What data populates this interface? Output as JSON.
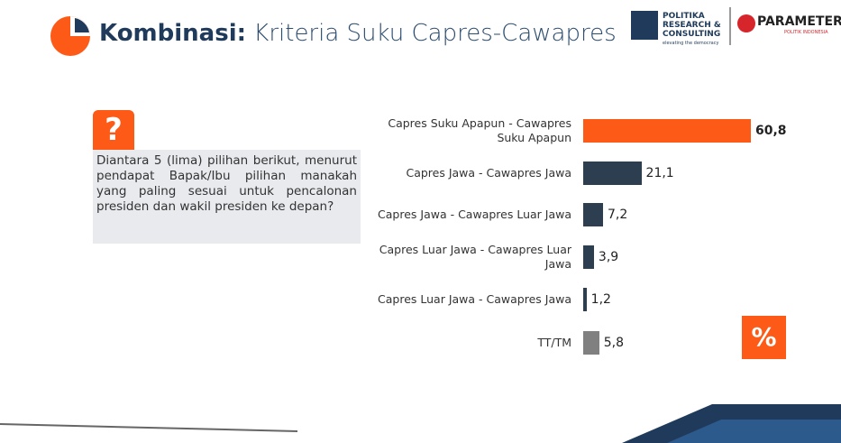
{
  "header": {
    "title_bold": "Kombinasi:",
    "title": "Kriteria Suku Capres-Cawapres",
    "logo1": [
      "POLITIKA",
      "RESEARCH &",
      "CONSULTING"
    ],
    "logo1_tagline": "elevating the democracy",
    "logo2": "PARAMETER",
    "logo2_tagline": "POLITIK INDONESIA"
  },
  "question": {
    "icon": "?",
    "text": "Diantara 5 (lima) pilihan berikut, menurut pendapat Bapak/Ibu pilihan manakah yang paling sesuai untuk pencalonan presiden dan wakil presiden ke depan?"
  },
  "unit_icon": "%",
  "chart_data": {
    "type": "bar",
    "orientation": "horizontal",
    "categories": [
      "Capres Suku Apapun - Cawapres Suku Apapun",
      "Capres Jawa - Cawapres Jawa",
      "Capres Jawa - Cawapres Luar Jawa",
      "Capres Luar Jawa - Cawapres Luar Jawa",
      "Capres  Luar Jawa - Cawapres Jawa",
      "TT/TM"
    ],
    "values": [
      60.8,
      21.1,
      7.2,
      3.9,
      1.2,
      5.8
    ],
    "value_labels": [
      "60,8",
      "21,1",
      "7,2",
      "3,9",
      "1,2",
      "5,8"
    ],
    "colors": [
      "#fc5a16",
      "#2c3e50",
      "#2c3e50",
      "#2c3e50",
      "#2c3e50",
      "#808080"
    ]
  }
}
